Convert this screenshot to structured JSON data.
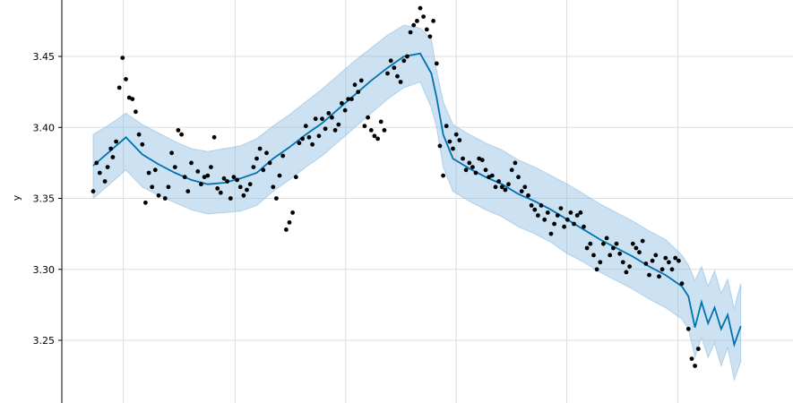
{
  "chart_data": {
    "type": "line",
    "title": "",
    "xlabel": "",
    "ylabel": "y",
    "ylim": [
      3.218,
      3.487
    ],
    "xlim": [
      0,
      100
    ],
    "grid": true,
    "yticks": [
      "3.25",
      "3.30",
      "3.35",
      "3.40",
      "3.45"
    ],
    "xtick_positions": [
      4.6,
      21.7,
      38.6,
      55.5,
      72.4,
      89.4
    ],
    "colors": {
      "forecast_line": "#0072B2",
      "band_fill": "#8fbcdf",
      "points": "#000000",
      "grid": "#dddddd",
      "axis": "#000000"
    },
    "series": [
      {
        "role": "forecast",
        "x": [
          0,
          2.5,
          5,
          7.5,
          10,
          12.5,
          15,
          17.5,
          20,
          22.5,
          25,
          27.5,
          30,
          32.5,
          35,
          37.5,
          40,
          42.5,
          45,
          47.5,
          50,
          51.7,
          52.5,
          53.5,
          55,
          57.5,
          60,
          62.5,
          65,
          67.5,
          70,
          72.5,
          75,
          77.5,
          80,
          82.5,
          85,
          87.5,
          90,
          91,
          92,
          93,
          94,
          95,
          96,
          97,
          98,
          99
        ],
        "values": [
          3.373,
          3.383,
          3.393,
          3.381,
          3.374,
          3.368,
          3.363,
          3.36,
          3.361,
          3.364,
          3.368,
          3.378,
          3.386,
          3.395,
          3.403,
          3.413,
          3.423,
          3.433,
          3.442,
          3.45,
          3.452,
          3.438,
          3.421,
          3.395,
          3.378,
          3.371,
          3.365,
          3.36,
          3.353,
          3.348,
          3.342,
          3.335,
          3.328,
          3.321,
          3.315,
          3.309,
          3.302,
          3.296,
          3.288,
          3.281,
          3.259,
          3.277,
          3.262,
          3.273,
          3.258,
          3.268,
          3.247,
          3.26
        ]
      },
      {
        "role": "upper_bound",
        "values": [
          3.395,
          3.402,
          3.41,
          3.402,
          3.396,
          3.39,
          3.385,
          3.383,
          3.385,
          3.387,
          3.392,
          3.401,
          3.409,
          3.418,
          3.427,
          3.437,
          3.447,
          3.456,
          3.465,
          3.472,
          3.47,
          3.462,
          3.44,
          3.418,
          3.402,
          3.395,
          3.389,
          3.384,
          3.377,
          3.372,
          3.366,
          3.36,
          3.353,
          3.346,
          3.34,
          3.334,
          3.327,
          3.321,
          3.31,
          3.303,
          3.292,
          3.302,
          3.288,
          3.299,
          3.283,
          3.293,
          3.272,
          3.29
        ]
      },
      {
        "role": "lower_bound",
        "values": [
          3.35,
          3.36,
          3.37,
          3.358,
          3.352,
          3.347,
          3.342,
          3.339,
          3.34,
          3.341,
          3.345,
          3.355,
          3.363,
          3.372,
          3.38,
          3.39,
          3.4,
          3.41,
          3.42,
          3.428,
          3.432,
          3.414,
          3.4,
          3.372,
          3.355,
          3.348,
          3.342,
          3.337,
          3.33,
          3.325,
          3.319,
          3.311,
          3.305,
          3.298,
          3.292,
          3.286,
          3.279,
          3.273,
          3.265,
          3.258,
          3.238,
          3.252,
          3.238,
          3.248,
          3.232,
          3.245,
          3.222,
          3.235
        ]
      },
      {
        "role": "observed",
        "points": [
          [
            0,
            3.355
          ],
          [
            0.5,
            3.375
          ],
          [
            1,
            3.368
          ],
          [
            1.8,
            3.362
          ],
          [
            2.2,
            3.372
          ],
          [
            2.7,
            3.385
          ],
          [
            3,
            3.379
          ],
          [
            3.5,
            3.39
          ],
          [
            4.5,
            3.449
          ],
          [
            4,
            3.428
          ],
          [
            5,
            3.434
          ],
          [
            5.5,
            3.421
          ],
          [
            6,
            3.42
          ],
          [
            6.5,
            3.411
          ],
          [
            7,
            3.395
          ],
          [
            7.5,
            3.388
          ],
          [
            8.5,
            3.368
          ],
          [
            9,
            3.358
          ],
          [
            8,
            3.347
          ],
          [
            9.5,
            3.37
          ],
          [
            10,
            3.352
          ],
          [
            11,
            3.35
          ],
          [
            11.5,
            3.358
          ],
          [
            12,
            3.382
          ],
          [
            12.5,
            3.372
          ],
          [
            13,
            3.398
          ],
          [
            13.5,
            3.395
          ],
          [
            14,
            3.365
          ],
          [
            14.5,
            3.355
          ],
          [
            15,
            3.375
          ],
          [
            16,
            3.369
          ],
          [
            16.5,
            3.36
          ],
          [
            17,
            3.365
          ],
          [
            17.5,
            3.366
          ],
          [
            18,
            3.372
          ],
          [
            18.5,
            3.393
          ],
          [
            19,
            3.357
          ],
          [
            19.5,
            3.354
          ],
          [
            20,
            3.364
          ],
          [
            20.5,
            3.362
          ],
          [
            21,
            3.35
          ],
          [
            21.5,
            3.365
          ],
          [
            22,
            3.363
          ],
          [
            22.5,
            3.358
          ],
          [
            23,
            3.352
          ],
          [
            23.5,
            3.356
          ],
          [
            24,
            3.36
          ],
          [
            24.5,
            3.372
          ],
          [
            25,
            3.378
          ],
          [
            25.5,
            3.385
          ],
          [
            26,
            3.37
          ],
          [
            26.5,
            3.382
          ],
          [
            27,
            3.375
          ],
          [
            27.5,
            3.358
          ],
          [
            28,
            3.35
          ],
          [
            28.5,
            3.366
          ],
          [
            29,
            3.38
          ],
          [
            29.5,
            3.328
          ],
          [
            30,
            3.333
          ],
          [
            30.5,
            3.34
          ],
          [
            31,
            3.365
          ],
          [
            31.5,
            3.389
          ],
          [
            32,
            3.392
          ],
          [
            32.5,
            3.401
          ],
          [
            33,
            3.393
          ],
          [
            33.5,
            3.388
          ],
          [
            34,
            3.406
          ],
          [
            34.5,
            3.394
          ],
          [
            35,
            3.406
          ],
          [
            35.5,
            3.399
          ],
          [
            36,
            3.41
          ],
          [
            36.5,
            3.407
          ],
          [
            37,
            3.398
          ],
          [
            37.5,
            3.402
          ],
          [
            38,
            3.417
          ],
          [
            38.5,
            3.412
          ],
          [
            39,
            3.42
          ],
          [
            39.5,
            3.42
          ],
          [
            40,
            3.43
          ],
          [
            40.5,
            3.425
          ],
          [
            41,
            3.433
          ],
          [
            41.5,
            3.401
          ],
          [
            42,
            3.407
          ],
          [
            42.5,
            3.398
          ],
          [
            43,
            3.394
          ],
          [
            43.5,
            3.392
          ],
          [
            44,
            3.404
          ],
          [
            44.5,
            3.398
          ],
          [
            45,
            3.438
          ],
          [
            45.5,
            3.447
          ],
          [
            46,
            3.442
          ],
          [
            46.5,
            3.436
          ],
          [
            47,
            3.432
          ],
          [
            47.5,
            3.447
          ],
          [
            48,
            3.45
          ],
          [
            48.5,
            3.467
          ],
          [
            49,
            3.472
          ],
          [
            49.5,
            3.475
          ],
          [
            50,
            3.484
          ],
          [
            50.5,
            3.478
          ],
          [
            51,
            3.469
          ],
          [
            51.5,
            3.464
          ],
          [
            52,
            3.475
          ],
          [
            52.5,
            3.445
          ],
          [
            53,
            3.387
          ],
          [
            53.5,
            3.366
          ],
          [
            54,
            3.401
          ],
          [
            54.5,
            3.39
          ],
          [
            55,
            3.385
          ],
          [
            55.5,
            3.395
          ],
          [
            56,
            3.391
          ],
          [
            56.5,
            3.378
          ],
          [
            57,
            3.37
          ],
          [
            57.5,
            3.375
          ],
          [
            58,
            3.372
          ],
          [
            58.5,
            3.368
          ],
          [
            59,
            3.378
          ],
          [
            59.5,
            3.377
          ],
          [
            60,
            3.37
          ],
          [
            60.5,
            3.365
          ],
          [
            61,
            3.366
          ],
          [
            61.5,
            3.358
          ],
          [
            62,
            3.362
          ],
          [
            62.5,
            3.358
          ],
          [
            63,
            3.356
          ],
          [
            63.5,
            3.36
          ],
          [
            64,
            3.37
          ],
          [
            64.5,
            3.375
          ],
          [
            65,
            3.365
          ],
          [
            65.5,
            3.355
          ],
          [
            66,
            3.358
          ],
          [
            66.5,
            3.352
          ],
          [
            67,
            3.345
          ],
          [
            67.5,
            3.342
          ],
          [
            68,
            3.338
          ],
          [
            68.5,
            3.345
          ],
          [
            69,
            3.335
          ],
          [
            69.5,
            3.34
          ],
          [
            70,
            3.325
          ],
          [
            70.5,
            3.332
          ],
          [
            71,
            3.338
          ],
          [
            71.5,
            3.343
          ],
          [
            72,
            3.33
          ],
          [
            72.5,
            3.335
          ],
          [
            73,
            3.34
          ],
          [
            73.5,
            3.332
          ],
          [
            74,
            3.338
          ],
          [
            74.5,
            3.34
          ],
          [
            75,
            3.33
          ],
          [
            75.5,
            3.315
          ],
          [
            76,
            3.318
          ],
          [
            76.5,
            3.31
          ],
          [
            77,
            3.3
          ],
          [
            77.5,
            3.305
          ],
          [
            78,
            3.318
          ],
          [
            78.5,
            3.322
          ],
          [
            79,
            3.31
          ],
          [
            79.5,
            3.315
          ],
          [
            80,
            3.318
          ],
          [
            80.5,
            3.311
          ],
          [
            81,
            3.305
          ],
          [
            81.5,
            3.298
          ],
          [
            82,
            3.302
          ],
          [
            82.5,
            3.318
          ],
          [
            83,
            3.315
          ],
          [
            83.5,
            3.312
          ],
          [
            84,
            3.32
          ],
          [
            84.5,
            3.304
          ],
          [
            85,
            3.296
          ],
          [
            85.5,
            3.306
          ],
          [
            86,
            3.31
          ],
          [
            86.5,
            3.295
          ],
          [
            87,
            3.3
          ],
          [
            87.5,
            3.308
          ],
          [
            88,
            3.305
          ],
          [
            88.5,
            3.3
          ],
          [
            89,
            3.308
          ],
          [
            89.5,
            3.306
          ],
          [
            90,
            3.29
          ],
          [
            91,
            3.258
          ],
          [
            91.5,
            3.237
          ],
          [
            92,
            3.232
          ],
          [
            92.5,
            3.244
          ]
        ]
      }
    ]
  }
}
